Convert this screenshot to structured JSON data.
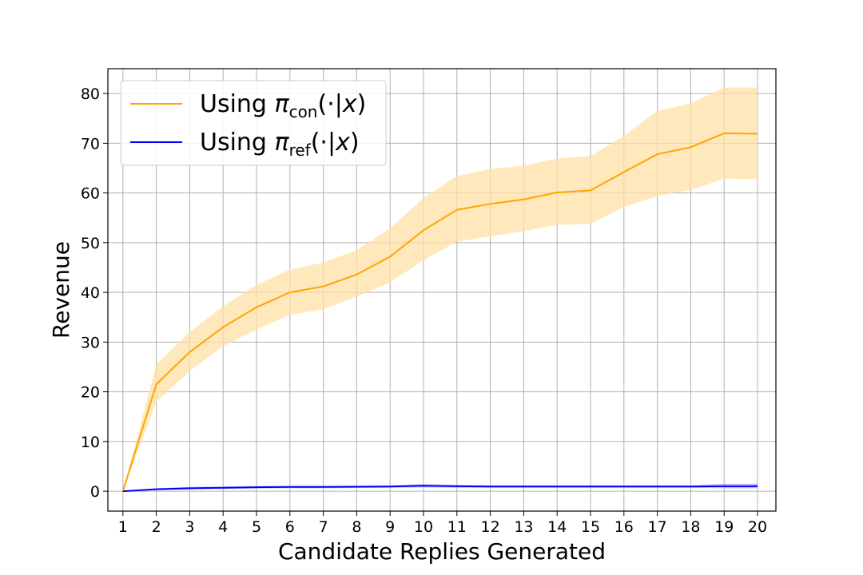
{
  "chart_data": {
    "type": "line",
    "xlabel": "Candidate Replies Generated",
    "ylabel": "Revenue",
    "x": [
      1,
      2,
      3,
      4,
      5,
      6,
      7,
      8,
      9,
      10,
      11,
      12,
      13,
      14,
      15,
      16,
      17,
      18,
      19,
      20
    ],
    "xticks": [
      "1",
      "2",
      "3",
      "4",
      "5",
      "6",
      "7",
      "8",
      "9",
      "10",
      "11",
      "12",
      "13",
      "14",
      "15",
      "16",
      "17",
      "18",
      "19",
      "20"
    ],
    "yticks": [
      "0",
      "10",
      "20",
      "30",
      "40",
      "50",
      "60",
      "70",
      "80"
    ],
    "xlim": [
      0.55,
      20.55
    ],
    "ylim": [
      -4,
      85
    ],
    "grid": true,
    "legend_position": "top-left",
    "series": [
      {
        "name": "Using πcon(·|x)",
        "legend_base": "Using ",
        "legend_pi": "π",
        "legend_sub": "con",
        "legend_args_pre": "(·|",
        "legend_var": "x",
        "legend_args_post": ")",
        "color": "#FFA500",
        "band_color": "#FFE0A6",
        "values": [
          0,
          21.5,
          28,
          33,
          37,
          40,
          41.2,
          43.6,
          47.2,
          52.5,
          56.6,
          57.8,
          58.7,
          60.1,
          60.5,
          64.2,
          67.8,
          69.2,
          72,
          71.9
        ],
        "lower": [
          0,
          18,
          24.2,
          29.2,
          32.5,
          35.5,
          36.6,
          39.2,
          42,
          46.5,
          50.2,
          51.3,
          52.3,
          53.6,
          53.8,
          57.2,
          59.4,
          60.6,
          62.9,
          62.8
        ],
        "upper": [
          0,
          25.5,
          32,
          37.2,
          41.5,
          44.6,
          46,
          48.5,
          52.9,
          59,
          63.4,
          64.8,
          65.5,
          66.9,
          67.4,
          71.5,
          76.5,
          78,
          81.2,
          81.2
        ]
      },
      {
        "name": "Using πref(·|x)",
        "legend_base": "Using ",
        "legend_pi": "π",
        "legend_sub": "ref",
        "legend_args_pre": "(·|",
        "legend_var": "x",
        "legend_args_post": ")",
        "color": "#0000FF",
        "band_color": "#9999FF",
        "values": [
          0,
          0.4,
          0.6,
          0.7,
          0.8,
          0.85,
          0.85,
          0.9,
          0.95,
          1.1,
          1.0,
          0.95,
          0.95,
          0.95,
          0.95,
          0.95,
          0.95,
          0.95,
          1.0,
          1.0
        ],
        "lower": [
          0,
          0.2,
          0.35,
          0.45,
          0.55,
          0.6,
          0.6,
          0.65,
          0.7,
          0.75,
          0.7,
          0.7,
          0.7,
          0.7,
          0.7,
          0.7,
          0.7,
          0.7,
          0.6,
          0.6
        ],
        "upper": [
          0,
          0.6,
          0.85,
          0.95,
          1.05,
          1.1,
          1.1,
          1.15,
          1.2,
          1.45,
          1.3,
          1.2,
          1.2,
          1.2,
          1.2,
          1.2,
          1.2,
          1.2,
          1.5,
          1.5
        ]
      }
    ]
  }
}
